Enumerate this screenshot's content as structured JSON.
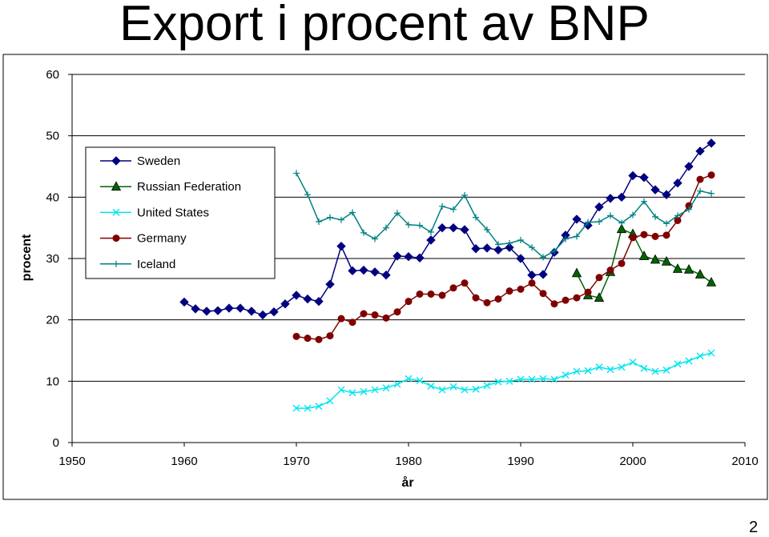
{
  "page": {
    "title": "Export i procent av BNP",
    "page_number": "2"
  },
  "chart_data": {
    "type": "line",
    "title": "Export i procent av BNP",
    "xlabel": "år",
    "ylabel": "procent",
    "xlim": [
      1950,
      2010
    ],
    "ylim": [
      0,
      60
    ],
    "x_ticks": [
      1950,
      1960,
      1970,
      1980,
      1990,
      2000,
      2010
    ],
    "y_ticks": [
      0,
      10,
      20,
      30,
      40,
      50,
      60
    ],
    "grid": "horizontal major gridlines",
    "legend_position": "top-left inside plot",
    "series": [
      {
        "name": "Sweden",
        "color": "#000080",
        "marker": "diamond",
        "x": [
          1960,
          1961,
          1962,
          1963,
          1964,
          1965,
          1966,
          1967,
          1968,
          1969,
          1970,
          1971,
          1972,
          1973,
          1974,
          1975,
          1976,
          1977,
          1978,
          1979,
          1980,
          1981,
          1982,
          1983,
          1984,
          1985,
          1986,
          1987,
          1988,
          1989,
          1990,
          1991,
          1992,
          1993,
          1994,
          1995,
          1996,
          1997,
          1998,
          1999,
          2000,
          2001,
          2002,
          2003,
          2004,
          2005,
          2006,
          2007
        ],
        "y": [
          22.9,
          21.8,
          21.4,
          21.5,
          21.9,
          21.9,
          21.4,
          20.8,
          21.3,
          22.6,
          24.0,
          23.4,
          23.0,
          25.8,
          32.0,
          28.0,
          28.1,
          27.8,
          27.3,
          30.4,
          30.3,
          30.1,
          33.0,
          35.0,
          35.0,
          34.7,
          31.6,
          31.7,
          31.4,
          31.8,
          30.0,
          27.3,
          27.4,
          31.0,
          33.8,
          36.4,
          35.4,
          38.4,
          39.8,
          40.0,
          43.5,
          43.2,
          41.2,
          40.4,
          42.3,
          45.0,
          47.5,
          48.8
        ]
      },
      {
        "name": "Russian Federation",
        "color": "#006400",
        "marker": "triangle",
        "x": [
          1995,
          1996,
          1997,
          1998,
          1999,
          2000,
          2001,
          2002,
          2003,
          2004,
          2005,
          2006,
          2007
        ],
        "y": [
          27.6,
          24.0,
          23.6,
          27.8,
          34.8,
          34.0,
          30.4,
          29.8,
          29.5,
          28.3,
          28.2,
          27.4,
          26.1
        ]
      },
      {
        "name": "United States",
        "color": "#00e5ee",
        "marker": "x",
        "x": [
          1970,
          1971,
          1972,
          1973,
          1974,
          1975,
          1976,
          1977,
          1978,
          1979,
          1980,
          1981,
          1982,
          1983,
          1984,
          1985,
          1986,
          1987,
          1988,
          1989,
          1990,
          1991,
          1992,
          1993,
          1994,
          1995,
          1996,
          1997,
          1998,
          1999,
          2000,
          2001,
          2002,
          2003,
          2004,
          2005,
          2006,
          2007
        ],
        "y": [
          5.6,
          5.6,
          5.9,
          6.8,
          8.6,
          8.1,
          8.3,
          8.6,
          8.9,
          9.5,
          10.4,
          10.1,
          9.2,
          8.6,
          9.1,
          8.6,
          8.7,
          9.3,
          9.9,
          10.0,
          10.3,
          10.3,
          10.4,
          10.3,
          11.0,
          11.6,
          11.7,
          12.3,
          11.9,
          12.3,
          13.1,
          12.1,
          11.6,
          11.8,
          12.8,
          13.3,
          14.1,
          14.6
        ]
      },
      {
        "name": "Germany",
        "color": "#800000",
        "marker": "circle",
        "x": [
          1970,
          1971,
          1972,
          1973,
          1974,
          1975,
          1976,
          1977,
          1978,
          1979,
          1980,
          1981,
          1982,
          1983,
          1984,
          1985,
          1986,
          1987,
          1988,
          1989,
          1990,
          1991,
          1992,
          1993,
          1994,
          1995,
          1996,
          1997,
          1998,
          1999,
          2000,
          2001,
          2002,
          2003,
          2004,
          2005,
          2006,
          2007
        ],
        "y": [
          17.3,
          17.0,
          16.8,
          17.4,
          20.2,
          19.6,
          21.0,
          20.8,
          20.3,
          21.3,
          23.0,
          24.2,
          24.2,
          24.0,
          25.2,
          26.0,
          23.6,
          22.8,
          23.4,
          24.7,
          25.0,
          26.0,
          24.3,
          22.6,
          23.2,
          23.6,
          24.5,
          26.9,
          28.1,
          29.2,
          33.4,
          33.9,
          33.6,
          33.8,
          36.2,
          38.6,
          42.9,
          43.6
        ]
      },
      {
        "name": "Iceland",
        "color": "#008080",
        "marker": "plus",
        "x": [
          1970,
          1971,
          1972,
          1973,
          1974,
          1975,
          1976,
          1977,
          1978,
          1979,
          1980,
          1981,
          1982,
          1983,
          1984,
          1985,
          1986,
          1987,
          1988,
          1989,
          1990,
          1991,
          1992,
          1993,
          1994,
          1995,
          1996,
          1997,
          1998,
          1999,
          2000,
          2001,
          2002,
          2003,
          2004,
          2005,
          2006,
          2007
        ],
        "y": [
          43.9,
          40.4,
          36.0,
          36.7,
          36.3,
          37.5,
          34.2,
          33.2,
          35.0,
          37.4,
          35.5,
          35.4,
          34.3,
          38.5,
          38.0,
          40.3,
          36.7,
          34.7,
          32.3,
          32.5,
          33.0,
          31.8,
          30.2,
          31.2,
          33.2,
          33.6,
          35.9,
          36.0,
          37.0,
          35.8,
          37.1,
          39.3,
          36.8,
          35.7,
          37.0,
          38.0,
          41.0,
          40.6
        ]
      }
    ]
  }
}
